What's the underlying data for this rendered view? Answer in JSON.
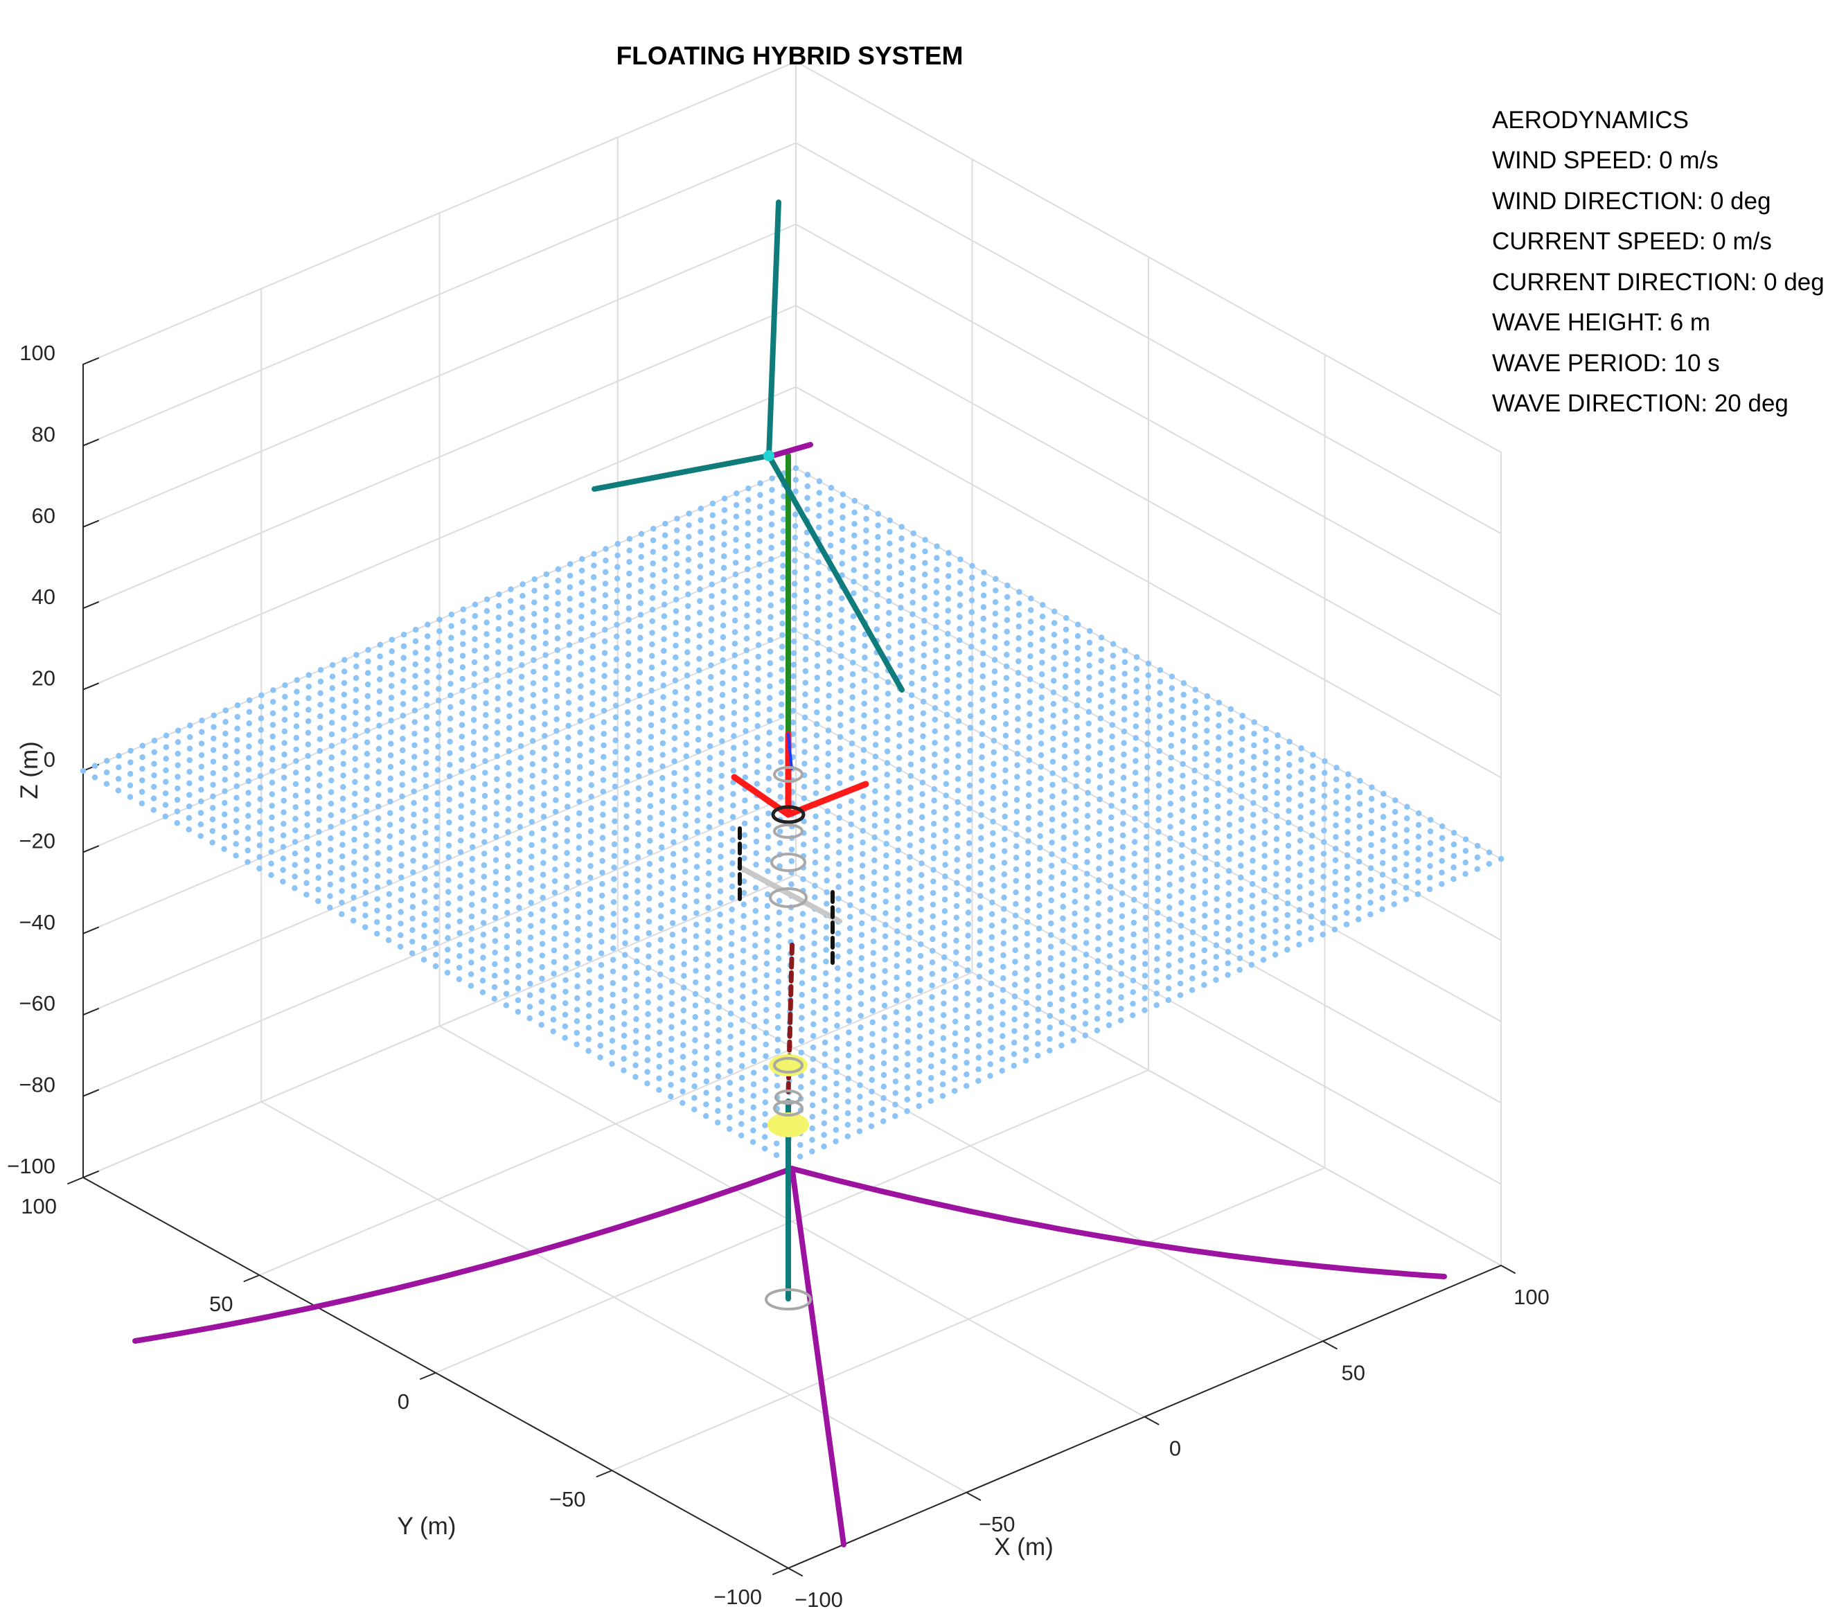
{
  "chart_data": {
    "type": "scatter",
    "title": "FLOATING HYBRID SYSTEM",
    "xlabel": "X (m)",
    "ylabel": "Y (m)",
    "zlabel": "Z (m)",
    "xlim": [
      -100,
      100
    ],
    "ylim": [
      -100,
      100
    ],
    "zlim": [
      -100,
      100
    ],
    "xticks": [
      -100,
      -50,
      0,
      50,
      100
    ],
    "yticks": [
      -100,
      -50,
      0,
      50,
      100
    ],
    "zticks": [
      -100,
      -80,
      -60,
      -40,
      -20,
      0,
      20,
      40,
      60,
      80,
      100
    ],
    "x_tick_labels": [
      "−100",
      "−50",
      "0",
      "50",
      "100"
    ],
    "y_tick_labels": [
      "−100",
      "−50",
      "0",
      "50",
      "100"
    ],
    "z_tick_labels": [
      "−100",
      "−80",
      "−60",
      "−40",
      "−20",
      "0",
      "20",
      "40",
      "60",
      "80",
      "100"
    ],
    "grid": true,
    "view": "3d-isometric",
    "water_surface": {
      "z": 0,
      "x_range": [
        -100,
        100
      ],
      "y_range": [
        -100,
        100
      ],
      "color": "#8cc4f7"
    },
    "structure": {
      "tower_top_z": 90,
      "nacelle_z": 78,
      "blade_length": 56,
      "platform_z": -12,
      "spar_bottom_z": -150
    },
    "mooring_lines": [
      {
        "anchor": [
          -100,
          100
        ],
        "fairlead_z": -87
      },
      {
        "anchor": [
          100,
          100
        ],
        "fairlead_z": -87
      },
      {
        "anchor": [
          0,
          -100
        ],
        "fairlead_z": -87
      }
    ],
    "colors": {
      "water": "#8cc4f7",
      "rotor": "#0f7b7b",
      "tower": "#228b22",
      "mooring": "#9c13a0",
      "platform_arm": "#ff1a1a",
      "spar": "#8b1a1a",
      "ring": "#a8a8a8",
      "marker": "#f4f46a"
    }
  },
  "info_panel": [
    "AERODYNAMICS",
    "WIND SPEED: 0 m/s",
    "WIND DIRECTION: 0 deg",
    "CURRENT SPEED: 0 m/s",
    "CURRENT DIRECTION: 0 deg",
    "WAVE HEIGHT: 6 m",
    "WAVE PERIOD: 10 s",
    "WAVE DIRECTION: 20 deg"
  ]
}
